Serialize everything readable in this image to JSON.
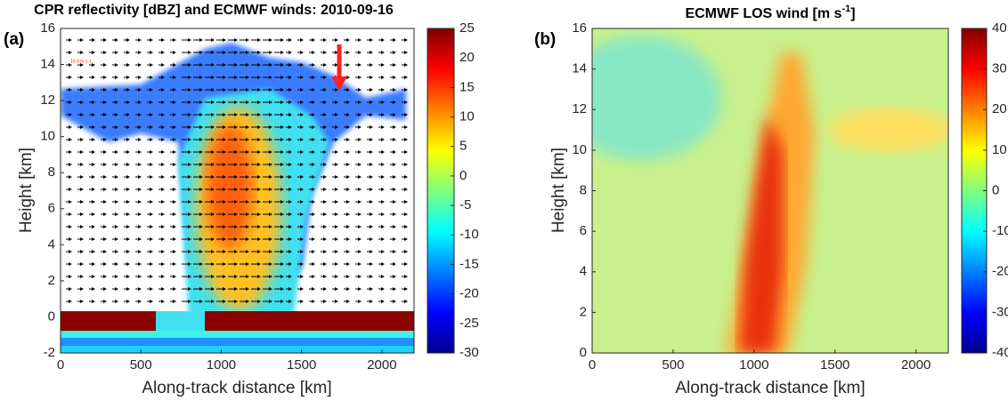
{
  "chart_data": [
    {
      "type": "heatmap",
      "panel_label": "(a)",
      "title": "CPR reflectivity [dBZ] and ECMWF winds: 2010-09-16",
      "x_label": "Along-track distance [km]",
      "y_label": "Height [km]",
      "xlim": [
        0,
        2200
      ],
      "xticks": [
        0,
        500,
        1000,
        1500,
        2000
      ],
      "ylim": [
        -2,
        16
      ],
      "yticks": [
        -2,
        0,
        2,
        4,
        6,
        8,
        10,
        12,
        14,
        16
      ],
      "colormap": "jet",
      "clim": [
        -30,
        25
      ],
      "cticks": [
        -30,
        -25,
        -20,
        -15,
        -10,
        -5,
        0,
        5,
        10,
        15,
        20,
        25
      ],
      "annotation": "10.0 m s-1"
    },
    {
      "type": "heatmap",
      "panel_label": "(b)",
      "title": "ECMWF LOS wind [m s",
      "title_superscript": "-1",
      "title_suffix": "]",
      "x_label": "Along-track distance [km]",
      "y_label": "Height [km]",
      "xlim": [
        0,
        2200
      ],
      "xticks": [
        0,
        500,
        1000,
        1500,
        2000
      ],
      "ylim": [
        0,
        16
      ],
      "yticks": [
        0,
        2,
        4,
        6,
        8,
        10,
        12,
        14,
        16
      ],
      "colormap": "jet",
      "clim": [
        -40,
        40
      ],
      "cticks": [
        -40,
        -30,
        -20,
        -10,
        0,
        10,
        20,
        30,
        40
      ]
    }
  ]
}
